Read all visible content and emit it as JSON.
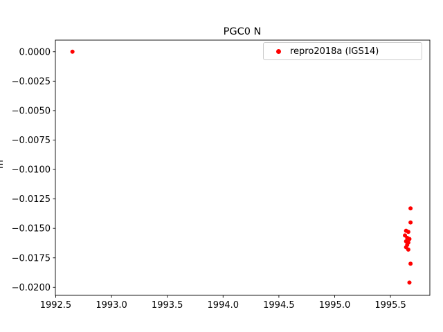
{
  "figure": {
    "title": "PGC0 N",
    "ylabel_fragment": "m"
  },
  "legend": {
    "label": "repro2018a (IGS14)",
    "marker_color": "#ff0000"
  },
  "chart_data": {
    "type": "scatter",
    "title": "PGC0 N",
    "xlabel": "",
    "ylabel": "",
    "grid": false,
    "legend_position": "upper right",
    "xlim": [
      1992.497,
      1995.853
    ],
    "ylim": [
      -0.020685,
      0.000985
    ],
    "xticks": [
      1992.5,
      1993.0,
      1993.5,
      1994.0,
      1994.5,
      1995.0,
      1995.5
    ],
    "xtick_labels": [
      "1992.5",
      "1993.0",
      "1993.5",
      "1994.0",
      "1994.5",
      "1995.0",
      "1995.5"
    ],
    "yticks": [
      0.0,
      -0.0025,
      -0.005,
      -0.0075,
      -0.01,
      -0.0125,
      -0.015,
      -0.0175,
      -0.02
    ],
    "ytick_labels": [
      "0.0000",
      "−0.0025",
      "−0.0050",
      "−0.0075",
      "−0.0100",
      "−0.0125",
      "−0.0150",
      "−0.0175",
      "−0.0200"
    ],
    "series": [
      {
        "name": "repro2018a (IGS14)",
        "color": "#ff0000",
        "marker": "dot",
        "points": [
          [
            1992.65,
            0.0
          ],
          [
            1995.68,
            -0.0133
          ],
          [
            1995.68,
            -0.0145
          ],
          [
            1995.64,
            -0.0152
          ],
          [
            1995.66,
            -0.0153
          ],
          [
            1995.63,
            -0.0156
          ],
          [
            1995.65,
            -0.0158
          ],
          [
            1995.67,
            -0.0159
          ],
          [
            1995.64,
            -0.0161
          ],
          [
            1995.66,
            -0.0162
          ],
          [
            1995.65,
            -0.0164
          ],
          [
            1995.64,
            -0.0166
          ],
          [
            1995.66,
            -0.0168
          ],
          [
            1995.68,
            -0.018
          ],
          [
            1995.67,
            -0.0196
          ]
        ]
      }
    ]
  }
}
